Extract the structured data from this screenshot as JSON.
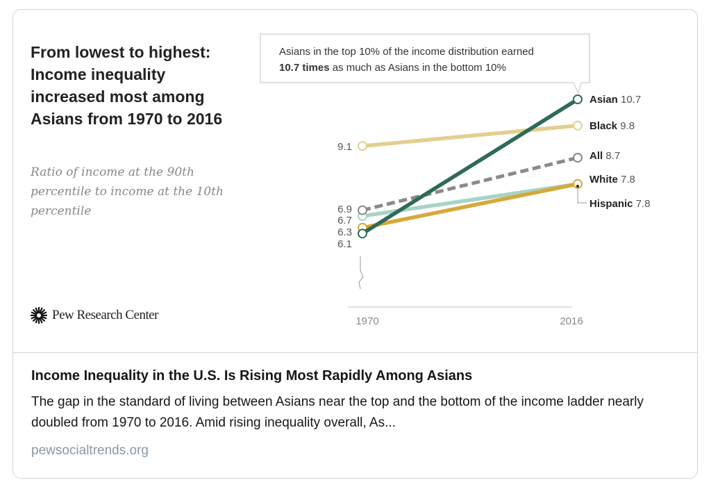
{
  "card": {
    "title": "Income Inequality in the U.S. Is Rising Most Rapidly Among Asians",
    "description": "The gap in the standard of living between Asians near the top and the bottom of the income ladder nearly doubled from 1970 to 2016. Amid rising inequality overall, As...",
    "domain": "pewsocialtrends.org"
  },
  "logo": {
    "text": "Pew Research Center"
  },
  "chart_data": {
    "type": "line",
    "title": "From lowest to highest: Income inequality increased most among Asians from 1970 to 2016",
    "subtitle": "Ratio of income at the 90th percentile to income at the 10th percentile",
    "x": [
      "1970",
      "2016"
    ],
    "start_labels": [
      "9.1",
      "6.9",
      "6.7",
      "6.3",
      "6.1"
    ],
    "annotation": {
      "line1": "Asians in the top 10% of the income distribution earned",
      "bold": "10.7 times",
      "rest": " as much as Asians in the bottom 10%"
    },
    "series": [
      {
        "name": "Asian",
        "values": [
          6.1,
          10.7
        ],
        "color": "#2e6a58",
        "dashed": false
      },
      {
        "name": "Black",
        "values": [
          9.1,
          9.8
        ],
        "color": "#e3cf8e",
        "dashed": false
      },
      {
        "name": "All",
        "values": [
          6.9,
          8.7
        ],
        "color": "#8a8a8a",
        "dashed": true
      },
      {
        "name": "Hispanic",
        "values": [
          6.7,
          7.8
        ],
        "color": "#a9d3c9",
        "dashed": false
      },
      {
        "name": "White",
        "values": [
          6.3,
          7.8
        ],
        "color": "#d6a93a",
        "dashed": false
      }
    ],
    "end_labels": [
      {
        "name": "Asian",
        "value": "10.7"
      },
      {
        "name": "Black",
        "value": "9.8"
      },
      {
        "name": "All",
        "value": "8.7"
      },
      {
        "name": "White",
        "value": "7.8"
      },
      {
        "name": "Hispanic",
        "value": "7.8"
      }
    ],
    "grid": false,
    "legend": "direct labels at right"
  }
}
